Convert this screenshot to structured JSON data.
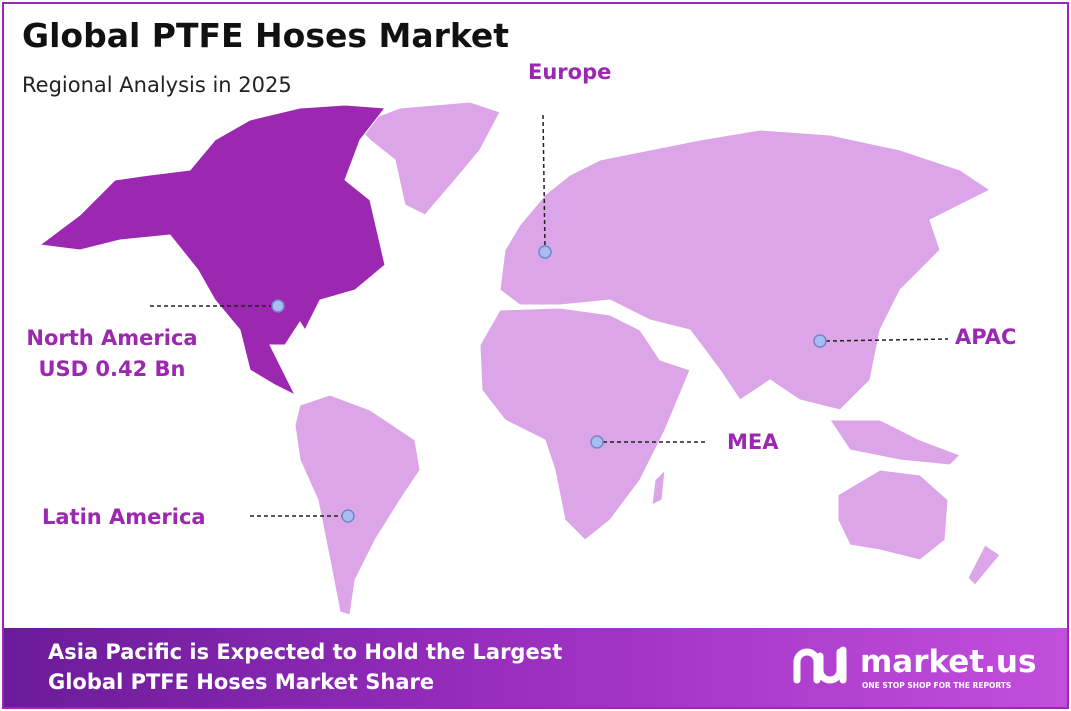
{
  "header": {
    "title": "Global PTFE Hoses Market",
    "subtitle": "Regional Analysis in 2025"
  },
  "regions": [
    {
      "label": "Europe"
    },
    {
      "label": "North America",
      "value_text": "USD 0.42 Bn"
    },
    {
      "label": "APAC"
    },
    {
      "label": "MEA"
    },
    {
      "label": "Latin America"
    }
  ],
  "footer": {
    "lines": [
      "Asia Pacific is Expected to Hold the Largest",
      "Global PTFE Hoses  Market Share"
    ]
  },
  "logo": {
    "name": "market.us",
    "tagline": "ONE STOP SHOP FOR THE REPORTS"
  }
}
